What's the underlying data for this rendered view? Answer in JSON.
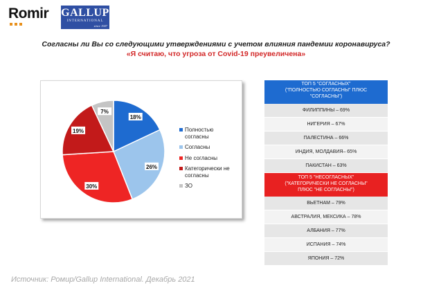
{
  "logo": {
    "romir": "Romir",
    "gallup": "GALLUP",
    "gallup_sub": "INTERNATIONAL",
    "gallup_since": "since 1947"
  },
  "question": "Согласны ли Вы со следующими утверждениями с учетом влияния пандемии коронавируса?",
  "statement": "«Я считаю, что угроза от Covid-19 преувеличена»",
  "chart_data": {
    "type": "pie",
    "title": "«Я считаю, что угроза от Covid-19 преувеличена»",
    "categories": [
      "Полностью согласны",
      "Согласны",
      "Не согласны",
      "Категорически не согласны",
      "ЗО"
    ],
    "values": [
      18,
      26,
      30,
      19,
      7
    ],
    "value_labels": [
      "18%",
      "26%",
      "30%",
      "19%",
      "7%"
    ],
    "colors": [
      "#1e6bd0",
      "#9cc5ec",
      "#ee2524",
      "#c21a1a",
      "#c4c4c4"
    ],
    "legend_position": "right"
  },
  "top_agree": {
    "header_lines": [
      "ТОП 5 \"СОГЛАСНЫХ\"",
      "(\"ПОЛНОСТЬЮ СОГЛАСНЫ\" ПЛЮС",
      "\"СОГЛАСНЫ\")"
    ],
    "rows": [
      "ФИЛИППИНЫ – 69%",
      "НИГЕРИЯ – 67%",
      "ПАЛЕСТИНА – 66%",
      "ИНДИЯ, МОЛДАВИЯ– 65%",
      "ПАКИСТАН – 63%"
    ]
  },
  "top_disagree": {
    "header_lines": [
      "ТОП 5 \"НЕСОГЛАСНЫХ\"",
      "(\"КАТЕГОРИЧЕСКИ НЕ СОГЛАСНЫ\"",
      "ПЛЮС \"НЕ СОГЛАСНЫ\")"
    ],
    "rows": [
      "ВЬЕТНАМ – 79%",
      "АВСТРАЛИЯ, МЕКСИКА – 78%",
      "АЛБАНИЯ – 77%",
      "ИСПАНИЯ – 74%",
      "ЯПОНИЯ – 72%"
    ]
  },
  "source": "Источник: Ромир/Gallup International. Декабрь 2021"
}
